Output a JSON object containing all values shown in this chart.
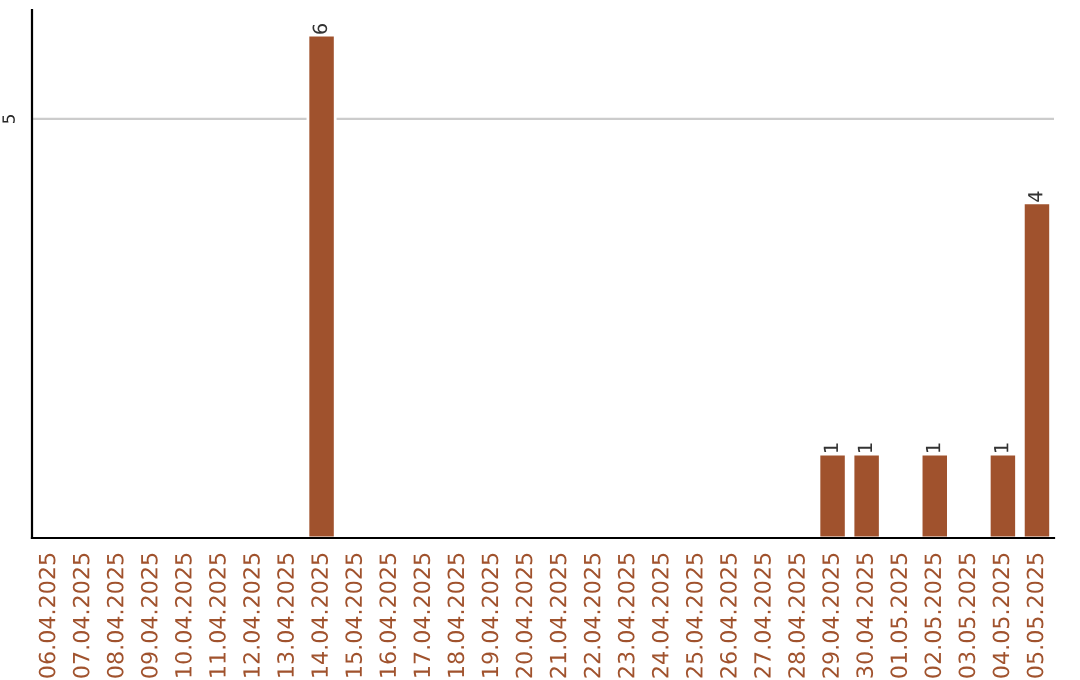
{
  "chart_data": {
    "type": "bar",
    "categories": [
      "06.04.2025",
      "07.04.2025",
      "08.04.2025",
      "09.04.2025",
      "10.04.2025",
      "11.04.2025",
      "12.04.2025",
      "13.04.2025",
      "14.04.2025",
      "15.04.2025",
      "16.04.2025",
      "17.04.2025",
      "18.04.2025",
      "19.04.2025",
      "20.04.2025",
      "21.04.2025",
      "22.04.2025",
      "23.04.2025",
      "24.04.2025",
      "25.04.2025",
      "26.04.2025",
      "27.04.2025",
      "28.04.2025",
      "29.04.2025",
      "30.04.2025",
      "01.05.2025",
      "02.05.2025",
      "03.05.2025",
      "04.05.2025",
      "05.05.2025"
    ],
    "values": [
      null,
      null,
      null,
      null,
      null,
      null,
      null,
      null,
      6,
      null,
      null,
      null,
      null,
      null,
      null,
      null,
      null,
      null,
      null,
      null,
      null,
      null,
      null,
      1,
      1,
      null,
      1,
      null,
      1,
      4
    ],
    "value_labels": [
      null,
      null,
      null,
      null,
      null,
      null,
      null,
      null,
      "6",
      null,
      null,
      null,
      null,
      null,
      null,
      null,
      null,
      null,
      null,
      null,
      null,
      null,
      null,
      "1",
      "1",
      null,
      "1",
      null,
      "1",
      "4"
    ],
    "color": "#a0522d",
    "ylim": [
      0,
      6.3
    ],
    "yticks": [
      5
    ],
    "grid": "y"
  }
}
